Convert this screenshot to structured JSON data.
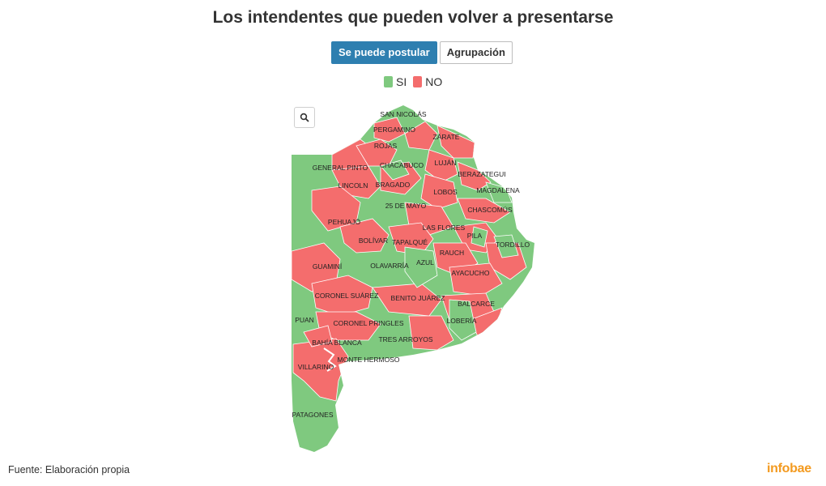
{
  "title": "Los intendentes que pueden volver a presentarse",
  "tabs": [
    {
      "label": "Se puede postular",
      "active": true
    },
    {
      "label": "Agrupación",
      "active": false
    }
  ],
  "legend": [
    {
      "label": "SI",
      "color": "#7fc97f"
    },
    {
      "label": "NO",
      "color": "#f46d6d"
    }
  ],
  "map": {
    "icons": {
      "zoom": "search-icon"
    },
    "colors": {
      "si": "#7fc97f",
      "no": "#f46d6d",
      "border": "#ffffff"
    },
    "labels": [
      "SAN NICOLÁS",
      "PERGAMINO",
      "ZÁRATE",
      "ROJAS",
      "GENERAL PINTO",
      "CHACABUCO",
      "LUJÁN",
      "BERAZATEGUI",
      "LINCOLN",
      "BRAGADO",
      "LOBOS",
      "MAGDALENA",
      "25 DE MAYO",
      "CHASCOMÚS",
      "PEHUAJÓ",
      "LAS FLORES",
      "BOLÍVAR",
      "TAPALQUÉ",
      "PILA",
      "TORDILLO",
      "RAUCH",
      "GUAMINÍ",
      "OLAVARRÍA",
      "AZUL",
      "AYACUCHO",
      "CORONEL SUÁREZ",
      "BENITO JUÁREZ",
      "BALCARCE",
      "PUAN",
      "CORONEL PRINGLES",
      "LOBERÍA",
      "TRES ARROYOS",
      "BAHÍA BLANCA",
      "MONTE HERMOSO",
      "VILLARINO",
      "PATAGONES"
    ]
  },
  "source": "Fuente: Elaboración propia",
  "brand": "infobae"
}
